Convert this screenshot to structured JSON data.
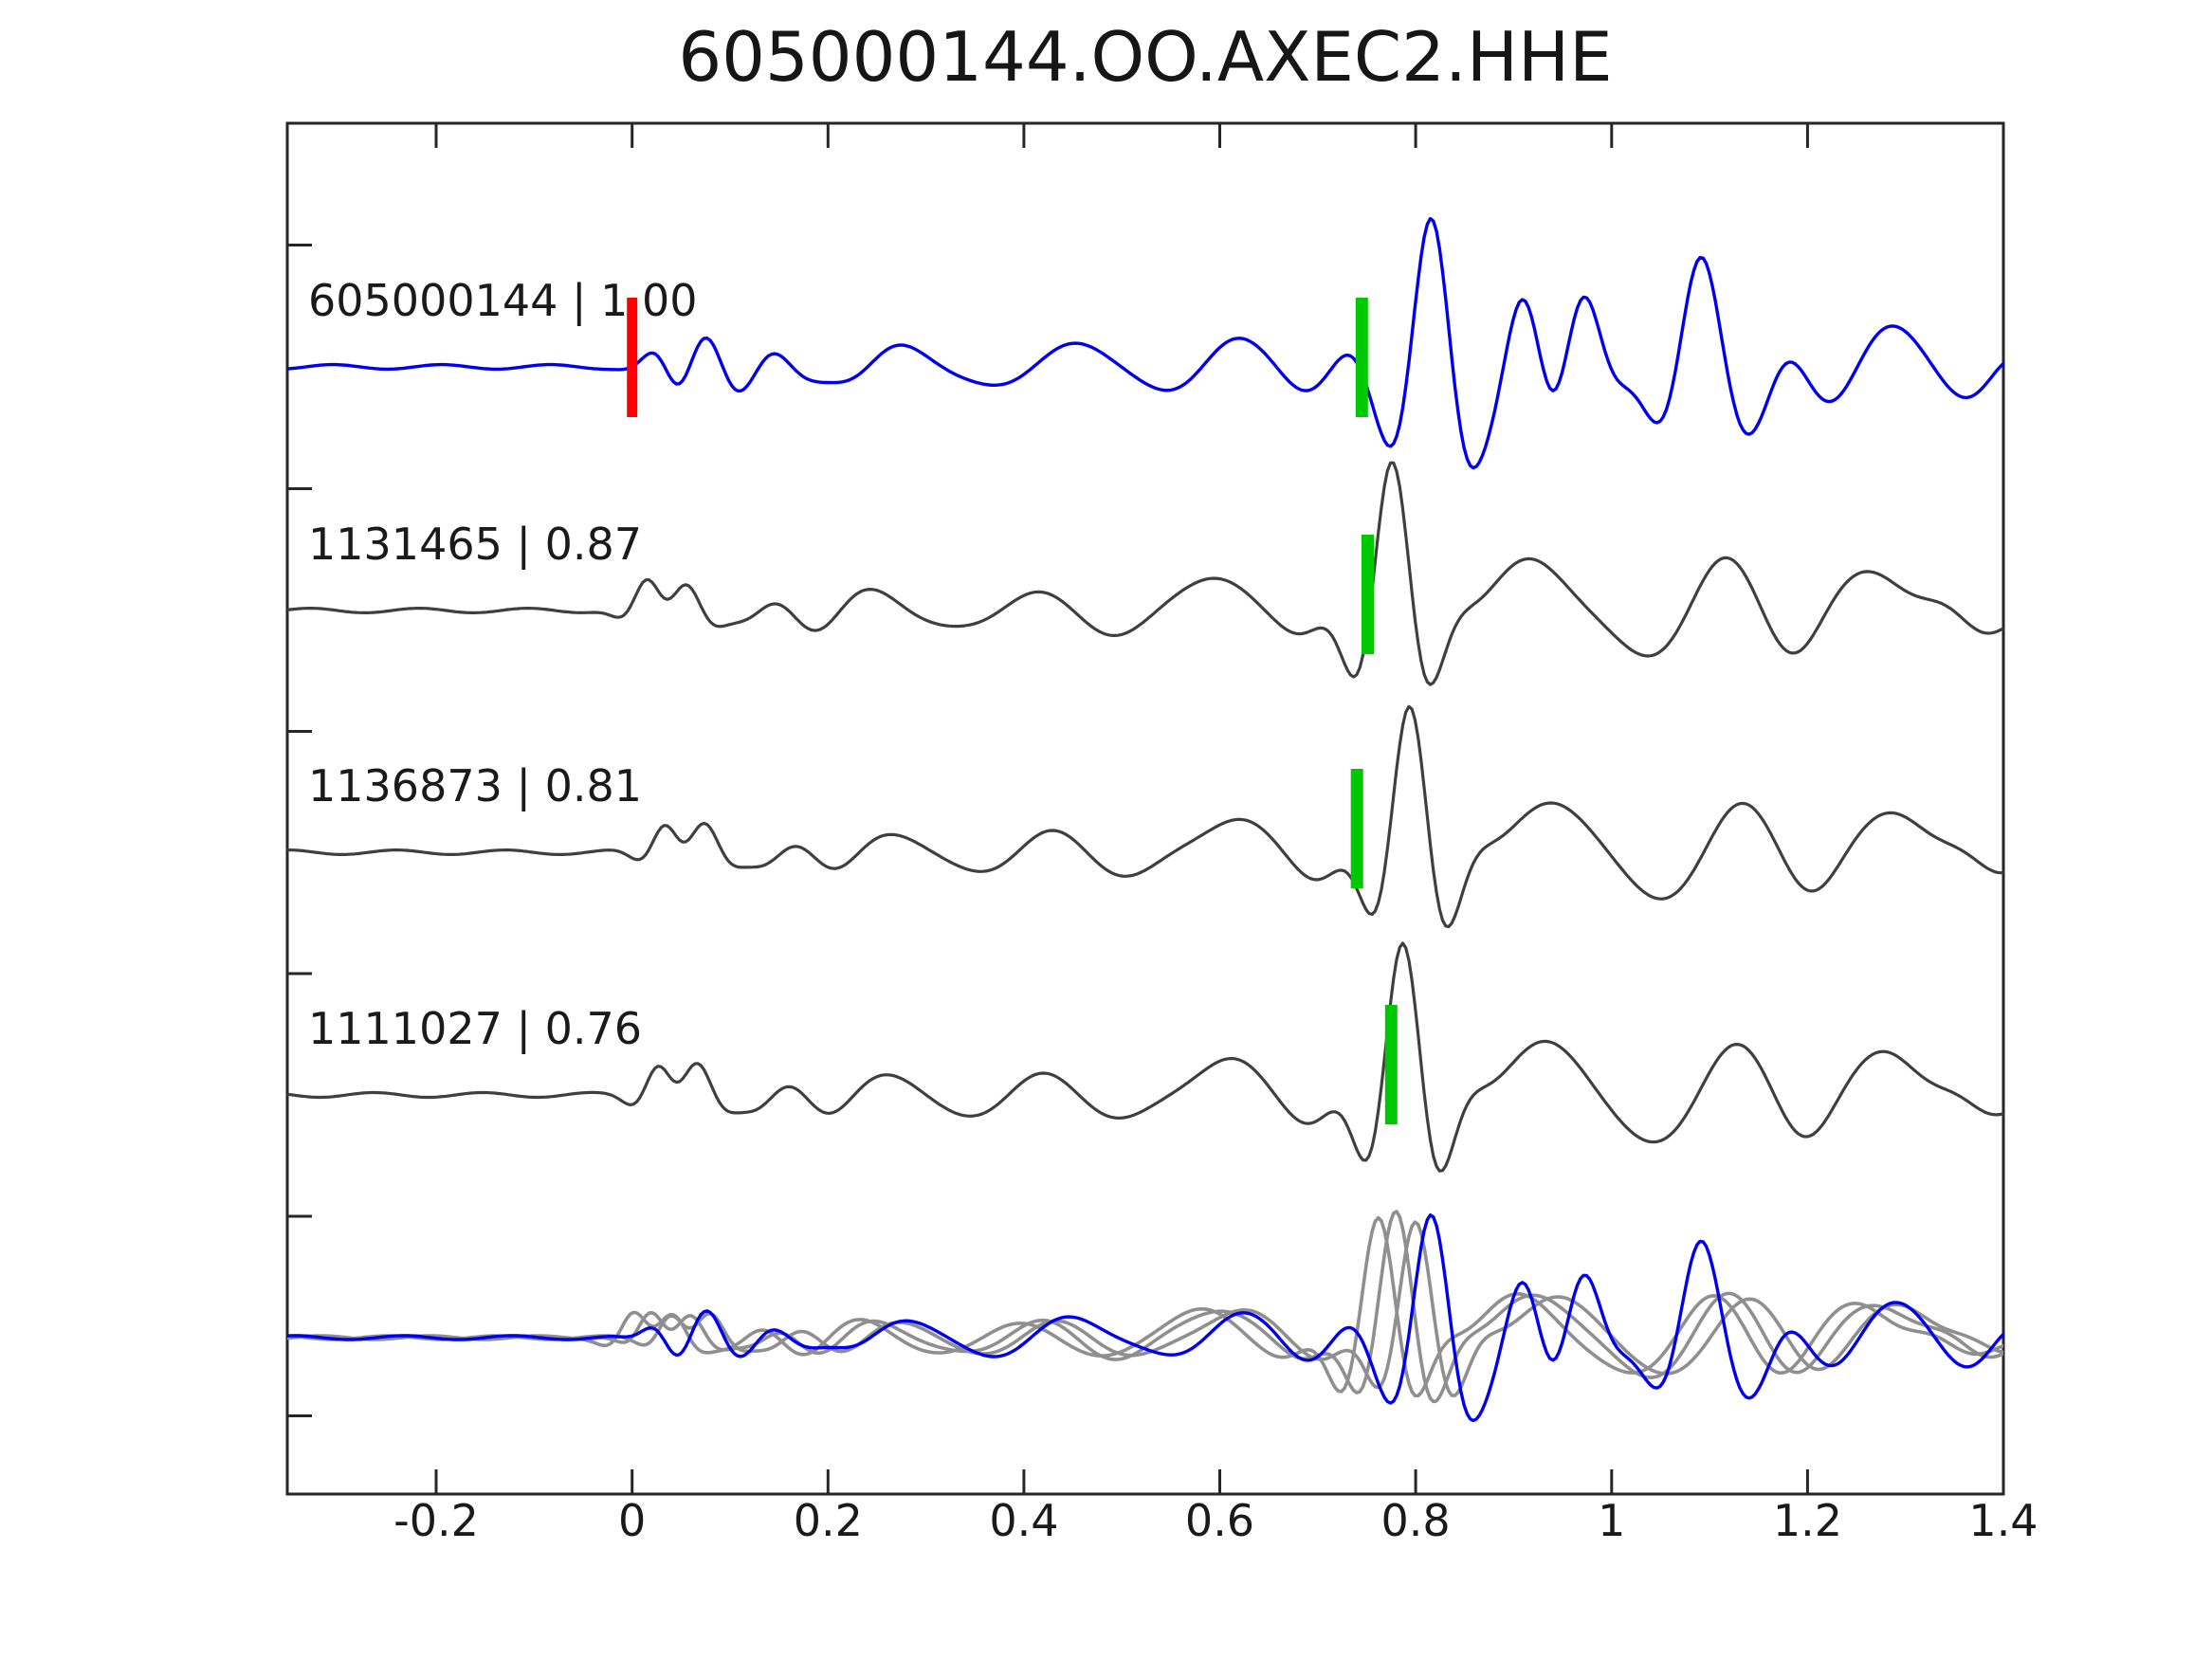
{
  "chart_data": {
    "type": "line",
    "title": "605000144.OO.AXEC2.HHE",
    "xlabel": "",
    "ylabel": "",
    "xlim": [
      -0.352,
      1.4
    ],
    "grid": false,
    "legend": null,
    "background": "#ffffff",
    "axis_color": "#262626",
    "text_color": "#1a1a1a",
    "xticks": {
      "values": [
        -0.2,
        0,
        0.2,
        0.4,
        0.6,
        0.8,
        1.0,
        1.2,
        1.4
      ],
      "labels": [
        "-0.2",
        "0",
        "0.2",
        "0.4",
        "0.6",
        "0.8",
        "1",
        "1.2",
        "1.4"
      ]
    },
    "marker_colors": {
      "reference_pick": "#ff0000",
      "correlation_pick": "#00c800"
    },
    "traces": [
      {
        "id": "605000144",
        "label": "605000144 | 1.00",
        "similarity": "1.00",
        "waveforms": [
          {
            "set": "reference",
            "dt": 0,
            "scale": 1.0,
            "phase": 0,
            "color": "#0000ee",
            "width": 3.4
          }
        ],
        "picks": [
          {
            "kind": "reference-pick",
            "x": 0.0,
            "color": "#ff0000",
            "dy": -10,
            "w": 11
          },
          {
            "kind": "correlation-pick",
            "x": 0.745,
            "color": "#00c800",
            "dy": -10,
            "w": 13
          }
        ]
      },
      {
        "id": "1131465",
        "label": "1131465 | 0.87",
        "similarity": "0.87",
        "waveforms": [
          {
            "set": "station",
            "dt": -0.014,
            "scale": 1.0,
            "phase": 1.3,
            "color": "#3f3f3f",
            "width": 3.2
          }
        ],
        "picks": [
          {
            "kind": "correlation-pick",
            "x": 0.751,
            "color": "#00c800",
            "dy": -17,
            "w": 13
          }
        ]
      },
      {
        "id": "1136873",
        "label": "1136873 | 0.81",
        "similarity": "0.81",
        "waveforms": [
          {
            "set": "station",
            "dt": 0.004,
            "scale": 1.0,
            "phase": 2.6,
            "color": "#3f3f3f",
            "width": 3.2
          }
        ],
        "picks": [
          {
            "kind": "correlation-pick",
            "x": 0.74,
            "color": "#00c800",
            "dy": -25,
            "w": 13
          }
        ]
      },
      {
        "id": "1111027",
        "label": "1111027 | 0.76",
        "similarity": "0.76",
        "waveforms": [
          {
            "set": "station",
            "dt": -0.003,
            "scale": 1.05,
            "phase": 3.9,
            "color": "#3f3f3f",
            "width": 3.2
          }
        ],
        "picks": [
          {
            "kind": "correlation-pick",
            "x": 0.775,
            "color": "#00c800",
            "dy": -32,
            "w": 13
          }
        ]
      },
      {
        "id": "overlay",
        "label": "",
        "similarity": "",
        "waveforms": [
          {
            "set": "station",
            "dt": -0.028,
            "scale": 0.82,
            "phase": 0.7,
            "color": "#8f8f8f",
            "width": 3.6
          },
          {
            "set": "station",
            "dt": -0.01,
            "scale": 0.85,
            "phase": 1.9,
            "color": "#8f8f8f",
            "width": 3.6
          },
          {
            "set": "station",
            "dt": 0.01,
            "scale": 0.8,
            "phase": 3.1,
            "color": "#8f8f8f",
            "width": 3.6
          },
          {
            "set": "reference",
            "dt": 0,
            "scale": 0.85,
            "phase": 2.2,
            "color": "#0000ee",
            "width": 3.4
          }
        ],
        "picks": []
      }
    ],
    "wavelet_sets": {
      "reference": [
        [
          0.035,
          14,
          18,
          0.03,
          1.5
        ],
        [
          0.075,
          12,
          26,
          0.035,
          0
        ],
        [
          0.115,
          10,
          -22,
          0.04,
          0
        ],
        [
          0.16,
          9,
          15,
          0.05,
          2.0
        ],
        [
          0.23,
          8,
          14,
          0.06,
          4.0
        ],
        [
          0.3,
          7,
          16,
          0.07,
          1.0
        ],
        [
          0.38,
          7,
          15,
          0.07,
          3.5
        ],
        [
          0.46,
          6.5,
          17,
          0.07,
          0.5
        ],
        [
          0.54,
          6,
          18,
          0.07,
          2.5
        ],
        [
          0.62,
          5.5,
          26,
          0.06,
          0
        ],
        [
          0.7,
          7,
          24,
          0.05,
          3.8
        ],
        [
          0.76,
          9,
          -30,
          0.035,
          0
        ],
        [
          0.816,
          11,
          150,
          0.048,
          0
        ],
        [
          0.875,
          5,
          -28,
          0.05,
          0
        ],
        [
          0.91,
          10,
          80,
          0.04,
          0
        ],
        [
          0.97,
          10,
          78,
          0.04,
          0
        ],
        [
          1.045,
          8,
          -35,
          0.05,
          0
        ],
        [
          1.09,
          9,
          95,
          0.042,
          0
        ],
        [
          1.145,
          8,
          -60,
          0.045,
          0
        ],
        [
          1.22,
          6,
          35,
          0.06,
          3.0
        ],
        [
          1.3,
          5,
          38,
          0.07,
          0.5
        ],
        [
          1.385,
          6,
          30,
          0.05,
          4.5
        ]
      ],
      "station": [
        [
          0.03,
          13,
          34,
          0.028,
          0
        ],
        [
          0.075,
          11,
          36,
          0.032,
          0.9
        ],
        [
          0.13,
          9,
          -18,
          0.05,
          0
        ],
        [
          0.19,
          8,
          16,
          0.06,
          2.5
        ],
        [
          0.27,
          7,
          15,
          0.08,
          0.6
        ],
        [
          0.36,
          6,
          14,
          0.08,
          3.2
        ],
        [
          0.45,
          6,
          15,
          0.08,
          1.2
        ],
        [
          0.53,
          5.5,
          16,
          0.07,
          4.1
        ],
        [
          0.615,
          4.5,
          30,
          0.06,
          0
        ],
        [
          0.7,
          5,
          -26,
          0.055,
          0
        ],
        [
          0.79,
          11,
          155,
          0.046,
          0
        ],
        [
          0.93,
          4.2,
          52,
          0.08,
          0
        ],
        [
          1.05,
          4.5,
          -36,
          0.07,
          0
        ],
        [
          1.13,
          5,
          44,
          0.06,
          0
        ],
        [
          1.2,
          5.5,
          -30,
          0.05,
          0
        ],
        [
          1.28,
          4.5,
          40,
          0.07,
          0
        ],
        [
          1.38,
          6,
          25,
          0.05,
          2.0
        ]
      ]
    }
  }
}
